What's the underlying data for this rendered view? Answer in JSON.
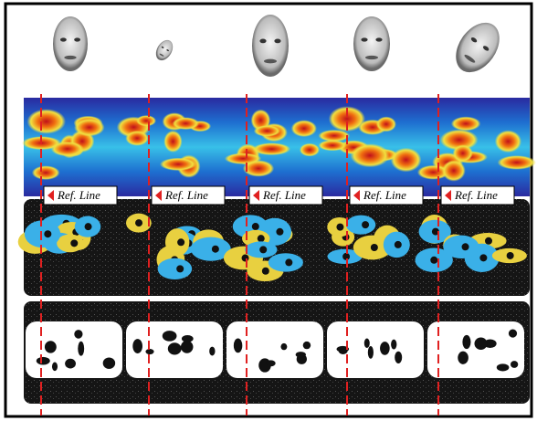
{
  "labels": [
    "Ref. Line",
    "Ref. Line",
    "Ref. Line",
    "Ref. Line",
    "Ref. Line"
  ]
}
